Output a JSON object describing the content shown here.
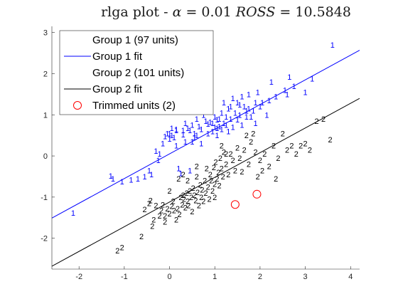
{
  "chart_data": {
    "type": "scatter",
    "title_parts": [
      "rlga plot - ",
      "α",
      " = 0.01 ",
      "ROSS",
      " = 10.5848"
    ],
    "xlim": [
      -2.6,
      4.2
    ],
    "ylim": [
      -2.75,
      3.15
    ],
    "xticks": [
      -2,
      -1,
      0,
      1,
      2,
      3,
      4
    ],
    "yticks": [
      -2,
      -1,
      0,
      1,
      2,
      3
    ],
    "grid": false,
    "legend": {
      "placement": "top-left",
      "entries": [
        {
          "label": "Group 1 (97 units)",
          "kind": "marker",
          "color": "#0000ff"
        },
        {
          "label": "Group 1 fit",
          "kind": "line",
          "color": "#0000ff"
        },
        {
          "label": "Group 2 (101 units)",
          "kind": "marker",
          "color": "#000000"
        },
        {
          "label": "Group 2 fit",
          "kind": "line",
          "color": "#000000"
        },
        {
          "label": "Trimmed units (2)",
          "kind": "circle",
          "color": "#ff0000"
        }
      ]
    },
    "colors": {
      "group1": "#0000ff",
      "group2": "#000000",
      "trimmed": "#ff0000",
      "axis": "#262626"
    },
    "series": [
      {
        "name": "Group 1 (97 units)",
        "marker": "1",
        "points": [
          [
            -2.13,
            -1.38
          ],
          [
            -1.3,
            -0.48
          ],
          [
            -1.25,
            -0.55
          ],
          [
            -1.05,
            -0.62
          ],
          [
            -0.85,
            -0.58
          ],
          [
            -0.7,
            -0.55
          ],
          [
            -0.55,
            -0.5
          ],
          [
            -0.45,
            -0.35
          ],
          [
            -0.4,
            -0.45
          ],
          [
            -0.3,
            0.12
          ],
          [
            -0.25,
            -0.1
          ],
          [
            -0.22,
            0.05
          ],
          [
            -0.15,
            0.3
          ],
          [
            -0.1,
            0.48
          ],
          [
            -0.05,
            0.55
          ],
          [
            0.0,
            0.42
          ],
          [
            0.0,
            0.55
          ],
          [
            0.05,
            0.5
          ],
          [
            0.1,
            0.45
          ],
          [
            0.15,
            0.62
          ],
          [
            0.15,
            0.65
          ],
          [
            0.2,
            -0.3
          ],
          [
            0.25,
            -0.42
          ],
          [
            0.3,
            0.52
          ],
          [
            0.3,
            0.62
          ],
          [
            0.35,
            0.35
          ],
          [
            0.35,
            0.8
          ],
          [
            0.4,
            0.68
          ],
          [
            0.45,
            -0.35
          ],
          [
            0.5,
            0.75
          ],
          [
            0.5,
            0.35
          ],
          [
            0.55,
            0.55
          ],
          [
            0.6,
            0.9
          ],
          [
            0.6,
            0.5
          ],
          [
            0.65,
            0.72
          ],
          [
            0.7,
            0.65
          ],
          [
            0.7,
            0.3
          ],
          [
            0.75,
            1.0
          ],
          [
            0.8,
            0.85
          ],
          [
            0.85,
            0.55
          ],
          [
            0.85,
            0.78
          ],
          [
            0.9,
            0.82
          ],
          [
            0.95,
            0.8
          ],
          [
            0.95,
            0.6
          ],
          [
            1.0,
            0.7
          ],
          [
            1.0,
            0.95
          ],
          [
            1.05,
            0.88
          ],
          [
            1.05,
            0.68
          ],
          [
            1.1,
            0.72
          ],
          [
            1.1,
            0.9
          ],
          [
            1.15,
            0.65
          ],
          [
            1.15,
            1.05
          ],
          [
            1.2,
            0.8
          ],
          [
            1.2,
            1.3
          ],
          [
            1.25,
            0.75
          ],
          [
            1.25,
            0.95
          ],
          [
            1.3,
            1.15
          ],
          [
            1.3,
            0.6
          ],
          [
            1.35,
            0.9
          ],
          [
            1.35,
            1.2
          ],
          [
            1.4,
            1.4
          ],
          [
            1.45,
            1.05
          ],
          [
            1.5,
            0.88
          ],
          [
            1.5,
            1.3
          ],
          [
            1.55,
            1.0
          ],
          [
            1.55,
            1.25
          ],
          [
            1.6,
            0.75
          ],
          [
            1.6,
            1.45
          ],
          [
            1.65,
            1.2
          ],
          [
            1.7,
            0.95
          ],
          [
            1.7,
            1.1
          ],
          [
            1.75,
            1.5
          ],
          [
            1.75,
            1.15
          ],
          [
            1.8,
            0.95
          ],
          [
            1.85,
            1.1
          ],
          [
            1.9,
            0.8
          ],
          [
            1.95,
            1.55
          ],
          [
            2.0,
            1.2
          ],
          [
            2.05,
            1.3
          ],
          [
            2.15,
            1.0
          ],
          [
            2.25,
            1.8
          ],
          [
            2.35,
            1.45
          ],
          [
            2.55,
            1.6
          ],
          [
            2.6,
            1.5
          ],
          [
            2.65,
            1.92
          ],
          [
            2.75,
            1.7
          ],
          [
            3.0,
            1.55
          ],
          [
            3.15,
            1.88
          ],
          [
            3.6,
            2.7
          ],
          [
            0.55,
            0.45
          ],
          [
            0.45,
            0.62
          ],
          [
            1.05,
            0.5
          ],
          [
            1.9,
            1.3
          ],
          [
            2.2,
            1.35
          ],
          [
            0.15,
            0.25
          ],
          [
            0.05,
            0.68
          ],
          [
            1.4,
            0.7
          ]
        ]
      },
      {
        "name": "Group 2 (101 units)",
        "marker": "2",
        "points": [
          [
            -1.15,
            -2.3
          ],
          [
            -1.05,
            -2.22
          ],
          [
            -0.62,
            -1.95
          ],
          [
            -0.55,
            -1.3
          ],
          [
            -0.45,
            -1.15
          ],
          [
            -0.42,
            -1.08
          ],
          [
            -0.38,
            -1.7
          ],
          [
            -0.35,
            -1.55
          ],
          [
            -0.3,
            -1.2
          ],
          [
            -0.22,
            -1.45
          ],
          [
            -0.18,
            -1.32
          ],
          [
            -0.15,
            -1.18
          ],
          [
            -0.1,
            -1.45
          ],
          [
            -0.05,
            -1.28
          ],
          [
            0.0,
            -0.85
          ],
          [
            0.0,
            -1.4
          ],
          [
            0.05,
            -1.22
          ],
          [
            0.08,
            -1.1
          ],
          [
            0.1,
            -1.32
          ],
          [
            0.15,
            -1.55
          ],
          [
            0.18,
            -1.28
          ],
          [
            0.2,
            -0.55
          ],
          [
            0.22,
            -1.42
          ],
          [
            0.25,
            -1.0
          ],
          [
            0.28,
            -1.18
          ],
          [
            0.3,
            -0.95
          ],
          [
            0.32,
            -1.05
          ],
          [
            0.35,
            -1.25
          ],
          [
            0.38,
            -0.9
          ],
          [
            0.4,
            -1.1
          ],
          [
            0.42,
            -1.2
          ],
          [
            0.45,
            -0.85
          ],
          [
            0.48,
            -1.0
          ],
          [
            0.5,
            -1.35
          ],
          [
            0.52,
            -0.78
          ],
          [
            0.55,
            -0.95
          ],
          [
            0.58,
            -1.08
          ],
          [
            0.6,
            -0.5
          ],
          [
            0.62,
            -0.88
          ],
          [
            0.65,
            -1.2
          ],
          [
            0.68,
            -0.7
          ],
          [
            0.7,
            -1.0
          ],
          [
            0.72,
            -0.82
          ],
          [
            0.75,
            -1.1
          ],
          [
            0.78,
            -0.6
          ],
          [
            0.8,
            -0.9
          ],
          [
            0.82,
            -0.3
          ],
          [
            0.85,
            -0.75
          ],
          [
            0.88,
            -1.05
          ],
          [
            0.9,
            -0.45
          ],
          [
            0.92,
            -0.6
          ],
          [
            0.95,
            -0.85
          ],
          [
            0.98,
            -0.28
          ],
          [
            1.0,
            -0.68
          ],
          [
            1.02,
            -0.15
          ],
          [
            1.05,
            -0.55
          ],
          [
            1.08,
            -0.4
          ],
          [
            1.1,
            -0.72
          ],
          [
            1.12,
            -0.05
          ],
          [
            1.15,
            -0.3
          ],
          [
            1.18,
            -0.5
          ],
          [
            1.2,
            0.1
          ],
          [
            1.25,
            -0.2
          ],
          [
            1.3,
            -0.45
          ],
          [
            1.35,
            0.05
          ],
          [
            1.4,
            -0.1
          ],
          [
            1.45,
            -0.35
          ],
          [
            1.5,
            0.2
          ],
          [
            1.55,
            -0.05
          ],
          [
            1.6,
            -0.38
          ],
          [
            1.65,
            0.15
          ],
          [
            1.7,
            0.5
          ],
          [
            1.75,
            -0.2
          ],
          [
            1.8,
            0.35
          ],
          [
            1.85,
            0.55
          ],
          [
            1.9,
            0.1
          ],
          [
            1.95,
            -0.5
          ],
          [
            2.0,
            -0.1
          ],
          [
            2.05,
            -0.35
          ],
          [
            2.1,
            0.05
          ],
          [
            2.2,
            -0.25
          ],
          [
            2.3,
            0.25
          ],
          [
            2.4,
            -0.05
          ],
          [
            2.5,
            0.55
          ],
          [
            2.6,
            0.15
          ],
          [
            2.7,
            0.25
          ],
          [
            2.8,
            0.05
          ],
          [
            2.9,
            0.25
          ],
          [
            3.0,
            0.3
          ],
          [
            3.1,
            0.15
          ],
          [
            3.25,
            0.85
          ],
          [
            3.4,
            0.9
          ],
          [
            3.55,
            0.4
          ],
          [
            0.3,
            -0.45
          ],
          [
            0.6,
            -0.25
          ],
          [
            1.0,
            -1.0
          ],
          [
            1.25,
            0.05
          ],
          [
            1.15,
            0.25
          ],
          [
            0.4,
            -0.6
          ],
          [
            -0.1,
            -1.6
          ],
          [
            2.35,
            -0.55
          ]
        ]
      },
      {
        "name": "Trimmed units (2)",
        "marker": "circle",
        "points": [
          [
            1.45,
            -1.18
          ],
          [
            1.93,
            -0.93
          ]
        ]
      }
    ],
    "fits": [
      {
        "name": "Group 1 fit",
        "intercept": 0.05,
        "slope": 0.6,
        "color": "#0000ff"
      },
      {
        "name": "Group 2 fit",
        "intercept": -1.12,
        "slope": 0.6,
        "color": "#000000"
      }
    ]
  }
}
